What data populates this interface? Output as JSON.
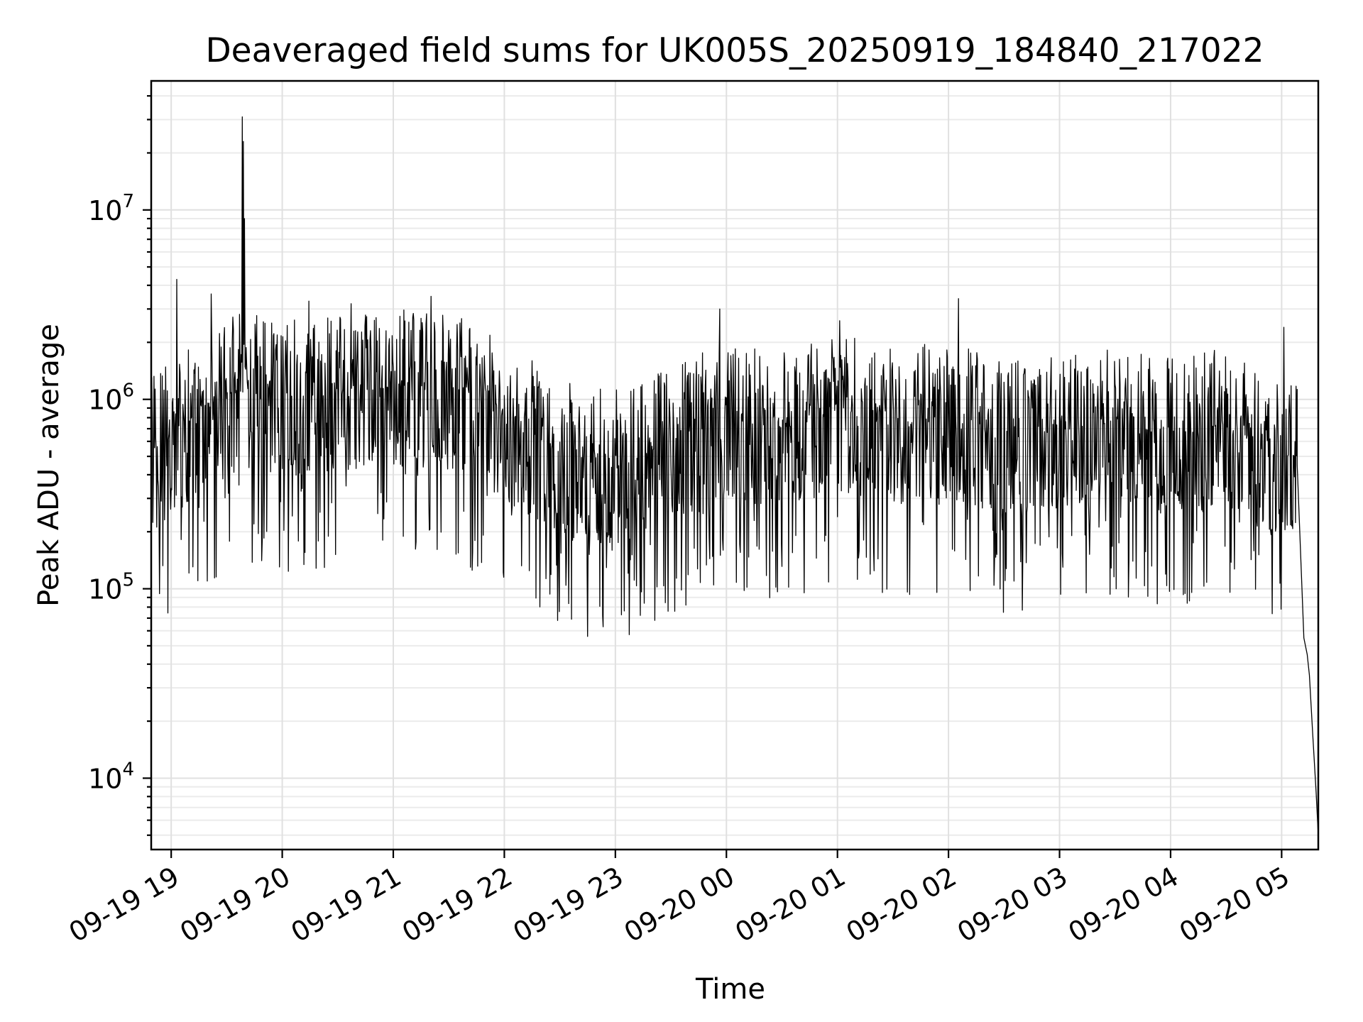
{
  "chart_data": {
    "type": "line",
    "title": "Deaveraged field sums for UK005S_20250919_184840_217022",
    "xlabel": "Time",
    "ylabel": "Peak ADU - average",
    "y_scale": "log",
    "ylim": [
      4200,
      48000000
    ],
    "xlim_hours": [
      18.82,
      29.33
    ],
    "grid": true,
    "x_ticks": [
      {
        "hour": 19,
        "label": "09-19 19"
      },
      {
        "hour": 20,
        "label": "09-19 20"
      },
      {
        "hour": 21,
        "label": "09-19 21"
      },
      {
        "hour": 22,
        "label": "09-19 22"
      },
      {
        "hour": 23,
        "label": "09-19 23"
      },
      {
        "hour": 24,
        "label": "09-20 00"
      },
      {
        "hour": 25,
        "label": "09-20 01"
      },
      {
        "hour": 26,
        "label": "09-20 02"
      },
      {
        "hour": 27,
        "label": "09-20 03"
      },
      {
        "hour": 28,
        "label": "09-20 04"
      },
      {
        "hour": 29,
        "label": "09-20 05"
      }
    ],
    "y_ticks": [
      {
        "value": 10000,
        "base": "10",
        "exp": "4"
      },
      {
        "value": 100000,
        "base": "10",
        "exp": "5"
      },
      {
        "value": 1000000,
        "base": "10",
        "exp": "6"
      },
      {
        "value": 10000000,
        "base": "10",
        "exp": "7"
      }
    ],
    "series": [
      {
        "name": "field sums",
        "color": "#000000",
        "samples_per_hour": 200,
        "x_start_hour": 18.82,
        "noise_low": 0.12,
        "noise_high": 2.6,
        "baseline_hours": [
          18.82,
          19.05,
          19.3,
          19.6,
          20.2,
          21.0,
          21.6,
          22.0,
          22.6,
          23.0,
          23.5,
          24.0,
          24.5,
          25.0,
          25.5,
          26.0,
          26.5,
          27.0,
          27.5,
          28.0,
          28.5,
          29.0,
          29.12
        ],
        "baseline_values": [
          520000,
          650000,
          850000,
          1100000,
          1000000,
          1150000,
          1100000,
          750000,
          480000,
          430000,
          580000,
          800000,
          680000,
          860000,
          720000,
          780000,
          600000,
          680000,
          760000,
          630000,
          720000,
          480000,
          500000
        ],
        "peaks": [
          {
            "hour": 19.05,
            "value": 4300000
          },
          {
            "hour": 19.36,
            "value": 3600000
          },
          {
            "hour": 19.64,
            "value": 31000000
          },
          {
            "hour": 19.65,
            "value": 23000000
          },
          {
            "hour": 19.66,
            "value": 9000000
          },
          {
            "hour": 20.24,
            "value": 3300000
          },
          {
            "hour": 20.62,
            "value": 3200000
          },
          {
            "hour": 21.34,
            "value": 3500000
          },
          {
            "hour": 23.94,
            "value": 3000000
          },
          {
            "hour": 25.02,
            "value": 2600000
          },
          {
            "hour": 26.09,
            "value": 3400000
          },
          {
            "hour": 29.02,
            "value": 2400000
          }
        ],
        "tail": [
          {
            "hour": 29.14,
            "value": 450000
          },
          {
            "hour": 29.2,
            "value": 55000
          },
          {
            "hour": 29.23,
            "value": 45000
          },
          {
            "hour": 29.25,
            "value": 35000
          },
          {
            "hour": 29.28,
            "value": 17000
          },
          {
            "hour": 29.31,
            "value": 8500
          },
          {
            "hour": 29.33,
            "value": 5000
          }
        ]
      }
    ]
  }
}
